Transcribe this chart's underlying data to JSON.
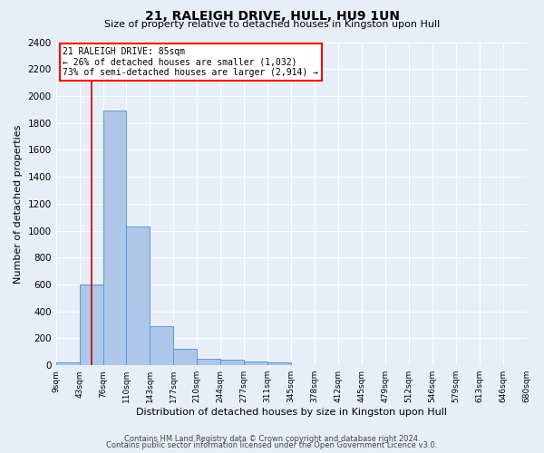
{
  "title": "21, RALEIGH DRIVE, HULL, HU9 1UN",
  "subtitle": "Size of property relative to detached houses in Kingston upon Hull",
  "xlabel": "Distribution of detached houses by size in Kingston upon Hull",
  "ylabel": "Number of detached properties",
  "footer_line1": "Contains HM Land Registry data © Crown copyright and database right 2024.",
  "footer_line2": "Contains public sector information licensed under the Open Government Licence v3.0.",
  "annotation_line1": "21 RALEIGH DRIVE: 85sqm",
  "annotation_line2": "← 26% of detached houses are smaller (1,032)",
  "annotation_line3": "73% of semi-detached houses are larger (2,914) →",
  "bar_heights": [
    20,
    600,
    1890,
    1030,
    290,
    120,
    50,
    45,
    30,
    20,
    0,
    0,
    0,
    0,
    0,
    0,
    0,
    0,
    0,
    0
  ],
  "bar_color": "#aec6e8",
  "bar_edge_color": "#5b9bd5",
  "vline_color": "#cc0000",
  "vline_bin": 1.5,
  "ylim": [
    0,
    2400
  ],
  "yticks": [
    0,
    200,
    400,
    600,
    800,
    1000,
    1200,
    1400,
    1600,
    1800,
    2000,
    2200,
    2400
  ],
  "xtick_labels": [
    "9sqm",
    "43sqm",
    "76sqm",
    "110sqm",
    "143sqm",
    "177sqm",
    "210sqm",
    "244sqm",
    "277sqm",
    "311sqm",
    "345sqm",
    "378sqm",
    "412sqm",
    "445sqm",
    "479sqm",
    "512sqm",
    "546sqm",
    "579sqm",
    "613sqm",
    "646sqm",
    "680sqm"
  ],
  "background_color": "#e8eef7",
  "grid_color": "#ffffff",
  "title_fontsize": 10,
  "subtitle_fontsize": 8
}
